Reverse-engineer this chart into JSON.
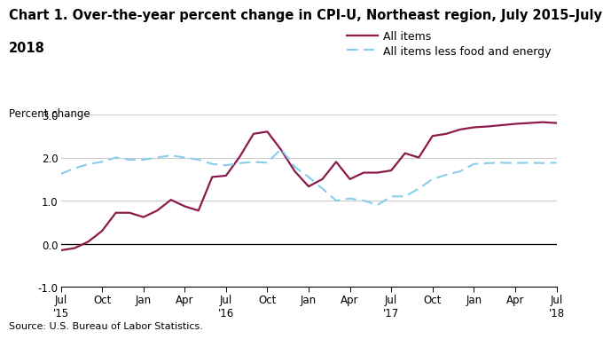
{
  "title_line1": "Chart 1. Over-the-year percent change in CPI-U, Northeast region, July 2015–July",
  "title_line2": "2018",
  "ylabel": "Percent change",
  "source": "Source: U.S. Bureau of Labor Statistics.",
  "ylim": [
    -1.0,
    3.0
  ],
  "yticks": [
    -1.0,
    0.0,
    1.0,
    2.0,
    3.0
  ],
  "all_items_color": "#8B1A4A",
  "core_color": "#87CEEB",
  "x_labels": [
    "Jul\n'15",
    "Oct",
    "Jan",
    "Apr",
    "Jul\n'16",
    "Oct",
    "Jan",
    "Apr",
    "Jul\n'17",
    "Oct",
    "Jan",
    "Apr",
    "Jul\n'18"
  ],
  "x_tick_positions": [
    0,
    3,
    6,
    9,
    12,
    15,
    18,
    21,
    24,
    27,
    30,
    33,
    36
  ],
  "all_items": [
    -0.15,
    -0.1,
    0.05,
    0.3,
    0.72,
    0.72,
    0.62,
    0.77,
    1.02,
    0.87,
    0.77,
    1.55,
    1.58,
    2.02,
    2.55,
    2.6,
    2.18,
    1.68,
    1.33,
    1.5,
    1.9,
    1.5,
    1.65,
    1.65,
    1.7,
    2.1,
    2.0,
    2.5,
    2.55,
    2.65,
    2.7,
    2.72,
    2.75,
    2.78,
    2.8,
    2.82,
    2.8
  ],
  "core": [
    1.62,
    1.75,
    1.85,
    1.9,
    2.0,
    1.95,
    1.95,
    2.0,
    2.05,
    2.0,
    1.95,
    1.85,
    1.82,
    1.87,
    1.9,
    1.88,
    2.2,
    1.78,
    1.55,
    1.28,
    1.0,
    1.05,
    1.0,
    0.9,
    1.1,
    1.1,
    1.28,
    1.5,
    1.6,
    1.68,
    1.85,
    1.87,
    1.88,
    1.87,
    1.88,
    1.87,
    1.88
  ],
  "n_points": 37,
  "title_fontsize": 10.5,
  "axis_fontsize": 8.5,
  "legend_fontsize": 9
}
